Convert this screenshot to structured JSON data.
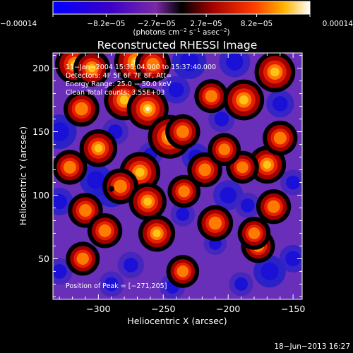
{
  "chart_data": {
    "type": "heatmap",
    "title": "Reconstructed RHESSI Image",
    "xlabel": "Heliocentric X (arcsec)",
    "ylabel": "Heliocentric Y (arcsec)",
    "xlim": [
      -335,
      -143
    ],
    "ylim": [
      18,
      212
    ],
    "xticks": [
      -300,
      -250,
      -200,
      -150
    ],
    "xtick_labels": [
      "−300",
      "−250",
      "−200",
      "−150"
    ],
    "yticks": [
      50,
      100,
      150,
      200
    ],
    "ytick_labels": [
      "50",
      "100",
      "150",
      "200"
    ],
    "colorbar": {
      "min": -0.00014,
      "max": 0.00014,
      "tick_values": [
        -0.00014,
        -8.2e-05,
        -2.7e-05,
        2.7e-05,
        8.2e-05,
        0.00014
      ],
      "tick_labels": [
        "−0.00014",
        "−8.2e−05",
        "−2.7e−05",
        "2.7e−05",
        "8.2e−05",
        "0.00014"
      ],
      "unit_parts": [
        "(photons cm",
        "−2",
        " s",
        "−1",
        " asec",
        "−2",
        ")"
      ]
    },
    "annotations": [
      "11−Jan−2004 15:35:04.000 to 15:37:40.000",
      "Detectors: 4F 5F 6F 7F 8F, Att=",
      "Energy Range: 25.0 − 50.0 keV",
      "Clean    Total counts: 3.55E+03"
    ],
    "peak_label": "Position of Peak = [−271,205]",
    "date_stamp": "18−Jun−2013 16:27",
    "bright_sources": [
      {
        "x": -318,
        "y": 203,
        "v": 0.8
      },
      {
        "x": -305,
        "y": 200,
        "v": 0.65
      },
      {
        "x": -271,
        "y": 205,
        "v": 1.0
      },
      {
        "x": -258,
        "y": 203,
        "v": 0.6
      },
      {
        "x": -280,
        "y": 175,
        "v": 0.85
      },
      {
        "x": -262,
        "y": 168,
        "v": 0.9
      },
      {
        "x": -313,
        "y": 168,
        "v": 0.6
      },
      {
        "x": -245,
        "y": 146,
        "v": 1.0
      },
      {
        "x": -235,
        "y": 150,
        "v": 0.55
      },
      {
        "x": -300,
        "y": 137,
        "v": 0.7
      },
      {
        "x": -322,
        "y": 122,
        "v": 0.55
      },
      {
        "x": -268,
        "y": 118,
        "v": 0.85
      },
      {
        "x": -283,
        "y": 107,
        "v": 0.6
      },
      {
        "x": -262,
        "y": 95,
        "v": 0.7
      },
      {
        "x": -255,
        "y": 70,
        "v": 0.65
      },
      {
        "x": -310,
        "y": 88,
        "v": 0.55
      },
      {
        "x": -213,
        "y": 178,
        "v": 0.5
      },
      {
        "x": -210,
        "y": 78,
        "v": 0.6
      },
      {
        "x": -170,
        "y": 124,
        "v": 0.7
      },
      {
        "x": -165,
        "y": 91,
        "v": 0.55
      },
      {
        "x": -177,
        "y": 60,
        "v": 0.5
      },
      {
        "x": -189,
        "y": 122,
        "v": 0.45
      },
      {
        "x": -218,
        "y": 120,
        "v": 0.55
      },
      {
        "x": -234,
        "y": 103,
        "v": 0.45
      },
      {
        "x": -188,
        "y": 175,
        "v": 0.85
      },
      {
        "x": -164,
        "y": 197,
        "v": 0.85
      },
      {
        "x": -160,
        "y": 145,
        "v": 0.55
      },
      {
        "x": -295,
        "y": 72,
        "v": 0.55
      },
      {
        "x": -180,
        "y": 70,
        "v": 0.45
      },
      {
        "x": -235,
        "y": 40,
        "v": 0.45
      },
      {
        "x": -312,
        "y": 50,
        "v": 0.5
      },
      {
        "x": -203,
        "y": 136,
        "v": 0.45
      }
    ],
    "dim_sources": [
      {
        "x": -290,
        "y": 105,
        "v": 1.0
      },
      {
        "x": -302,
        "y": 112,
        "v": 0.8
      },
      {
        "x": -330,
        "y": 150,
        "v": 0.9
      },
      {
        "x": -330,
        "y": 95,
        "v": 0.6
      },
      {
        "x": -230,
        "y": 205,
        "v": 0.9
      },
      {
        "x": -240,
        "y": 183,
        "v": 0.6
      },
      {
        "x": -195,
        "y": 205,
        "v": 0.75
      },
      {
        "x": -205,
        "y": 160,
        "v": 0.55
      },
      {
        "x": -225,
        "y": 130,
        "v": 0.6
      },
      {
        "x": -287,
        "y": 150,
        "v": 0.55
      },
      {
        "x": -160,
        "y": 172,
        "v": 0.6
      },
      {
        "x": -150,
        "y": 110,
        "v": 0.5
      },
      {
        "x": -200,
        "y": 100,
        "v": 0.7
      },
      {
        "x": -185,
        "y": 92,
        "v": 0.5
      },
      {
        "x": -210,
        "y": 62,
        "v": 0.4
      },
      {
        "x": -275,
        "y": 45,
        "v": 0.55
      },
      {
        "x": -290,
        "y": 30,
        "v": 0.5
      },
      {
        "x": -235,
        "y": 85,
        "v": 0.45
      },
      {
        "x": -168,
        "y": 40,
        "v": 0.8
      },
      {
        "x": -150,
        "y": 50,
        "v": 0.6
      },
      {
        "x": -260,
        "y": 132,
        "v": 0.45
      },
      {
        "x": -330,
        "y": 40,
        "v": 0.55
      },
      {
        "x": -243,
        "y": 28,
        "v": 0.5
      },
      {
        "x": -190,
        "y": 30,
        "v": 0.45
      }
    ]
  }
}
